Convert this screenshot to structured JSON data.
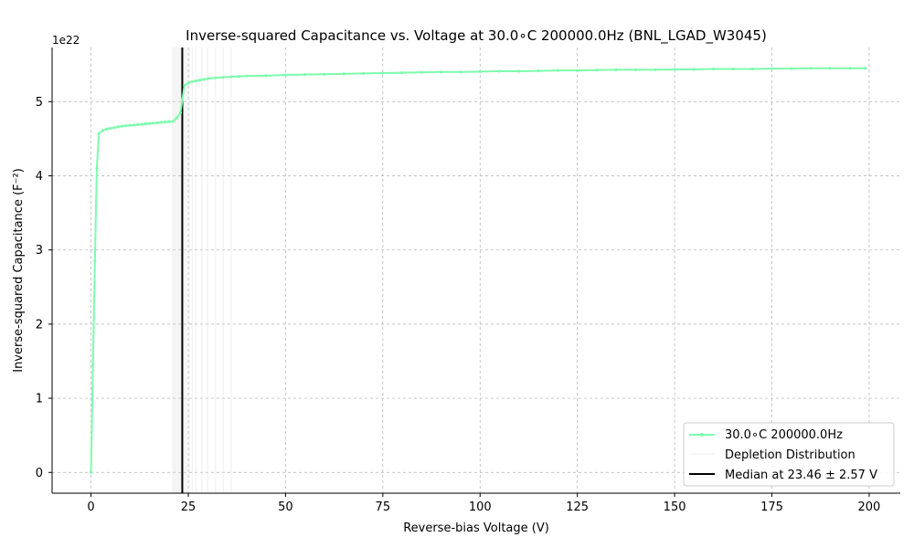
{
  "chart_data": {
    "type": "line",
    "title": "Inverse-squared Capacitance vs. Voltage at 30.0∘C 200000.0Hz (BNL_LGAD_W3045)",
    "xlabel": "Reverse-bias Voltage (V)",
    "ylabel": "Inverse-squared Capacitance (F⁻²)",
    "y_offset_text": "1e22",
    "x_scale": "linear",
    "y_scale": "linear",
    "xlim": [
      -10,
      208
    ],
    "ylim": [
      -0.28,
      5.73
    ],
    "y_units_multiplier": 1e+22,
    "xticks": [
      0,
      25,
      50,
      75,
      100,
      125,
      150,
      175,
      200
    ],
    "yticks": [
      0,
      1,
      2,
      3,
      4,
      5
    ],
    "grid": true,
    "legend_position": "lower-right",
    "series": [
      {
        "name": "30.0∘C 200000.0Hz",
        "color": "#7dfcae",
        "marker": "dot",
        "x": [
          0,
          0.5,
          1,
          1.5,
          2,
          3,
          4,
          5,
          6,
          7,
          8,
          9,
          10,
          11,
          12,
          13,
          14,
          15,
          16,
          17,
          18,
          19,
          20,
          21,
          22,
          23,
          24,
          25,
          26,
          27,
          28,
          29,
          30,
          32,
          34,
          36,
          38,
          40,
          45,
          50,
          55,
          60,
          65,
          70,
          75,
          80,
          85,
          90,
          95,
          100,
          105,
          110,
          115,
          120,
          125,
          130,
          135,
          140,
          145,
          150,
          155,
          160,
          165,
          170,
          175,
          180,
          185,
          190,
          195,
          199
        ],
        "y": [
          0,
          1.45,
          2.85,
          4.1,
          4.57,
          4.61,
          4.63,
          4.64,
          4.65,
          4.66,
          4.67,
          4.675,
          4.68,
          4.685,
          4.69,
          4.695,
          4.7,
          4.705,
          4.71,
          4.715,
          4.72,
          4.725,
          4.73,
          4.73,
          4.78,
          4.85,
          5.22,
          5.25,
          5.27,
          5.28,
          5.29,
          5.3,
          5.31,
          5.32,
          5.33,
          5.335,
          5.34,
          5.345,
          5.35,
          5.36,
          5.365,
          5.37,
          5.375,
          5.38,
          5.385,
          5.39,
          5.395,
          5.4,
          5.4,
          5.405,
          5.41,
          5.41,
          5.415,
          5.42,
          5.42,
          5.425,
          5.43,
          5.43,
          5.43,
          5.435,
          5.435,
          5.44,
          5.44,
          5.44,
          5.445,
          5.445,
          5.45,
          5.45,
          5.45,
          5.45
        ]
      }
    ],
    "depletion_distribution": {
      "name": "Depletion Distribution",
      "color": "#dddddd",
      "x": [
        21.0,
        21.4,
        21.8,
        22.2,
        22.6,
        23.0,
        23.4,
        23.6,
        24.0,
        24.5,
        25.2,
        26.0,
        27.0,
        28.5,
        30.0,
        32.0,
        34.0,
        36.0
      ]
    },
    "median": {
      "label": "Median at 23.46 ± 2.57 V",
      "value": 23.46,
      "uncertainty": 2.57,
      "color": "#000000"
    }
  }
}
